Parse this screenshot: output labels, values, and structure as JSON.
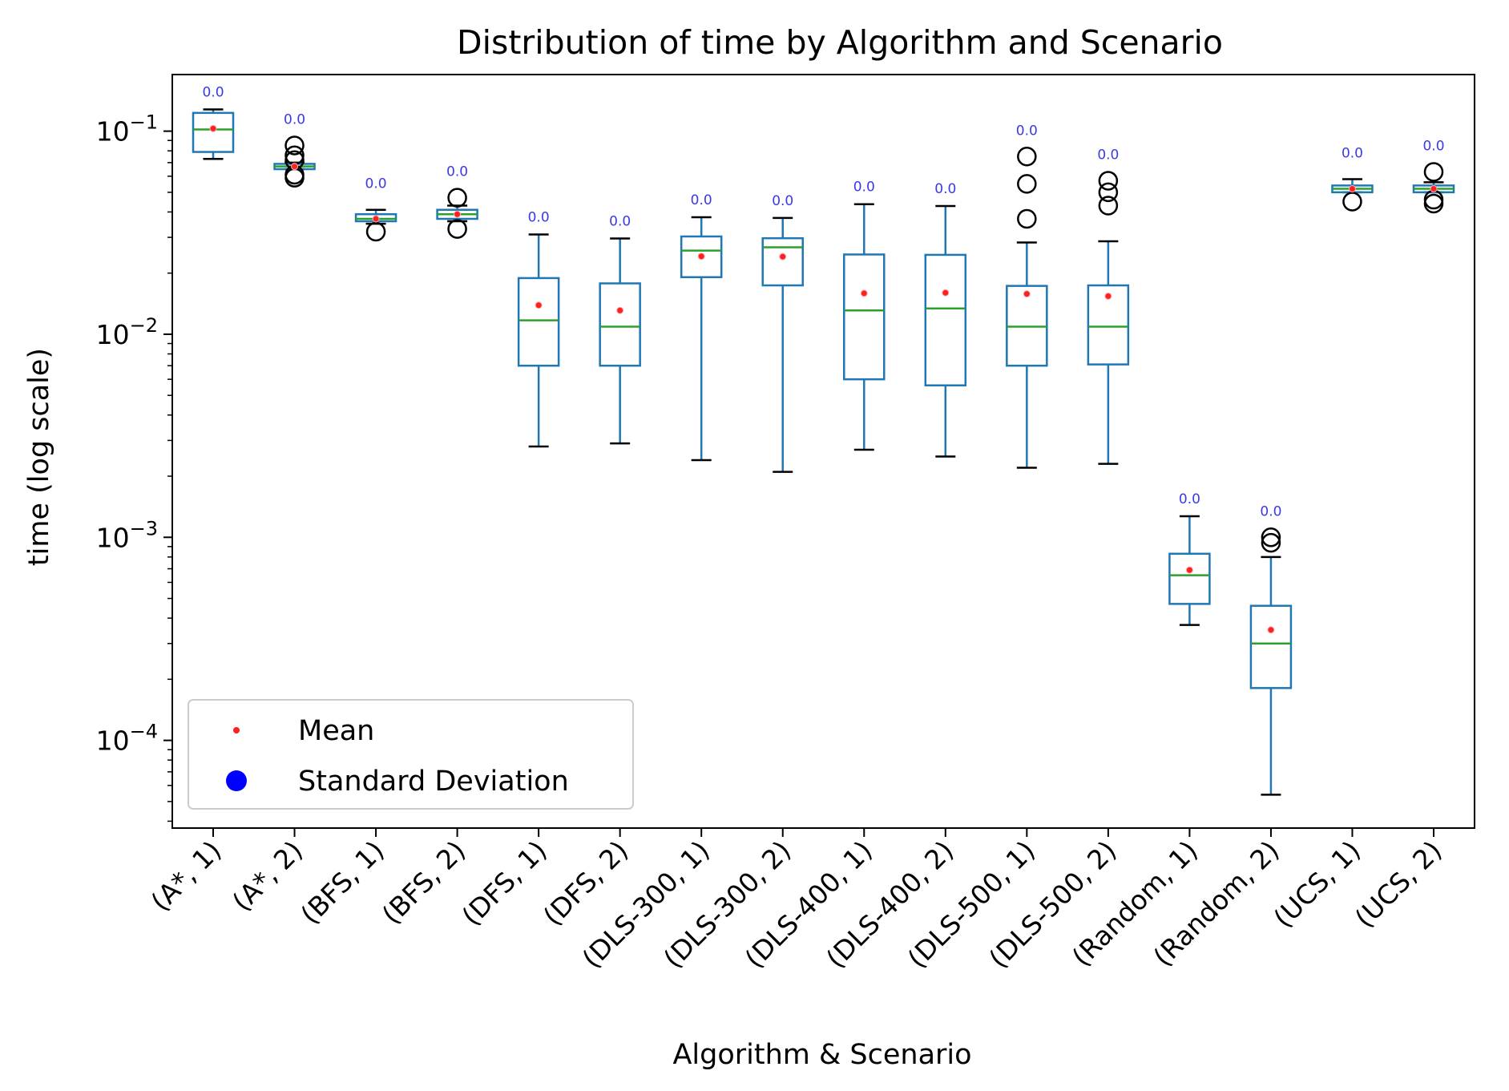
{
  "chart_data": {
    "type": "box",
    "title": "Distribution of time by Algorithm and Scenario",
    "xlabel": "Algorithm & Scenario",
    "ylabel": "time (log scale)",
    "yscale": "log",
    "ylim": [
      3.7e-05,
      0.19
    ],
    "yticks": [
      {
        "value": 0.1,
        "base": "10",
        "exp": "−1"
      },
      {
        "value": 0.01,
        "base": "10",
        "exp": "−2"
      },
      {
        "value": 0.001,
        "base": "10",
        "exp": "−3"
      },
      {
        "value": 0.0001,
        "base": "10",
        "exp": "−4"
      }
    ],
    "grid": false,
    "legend": {
      "placement": "lower-left",
      "entries": [
        {
          "label": "Mean",
          "color": "#ff2020"
        },
        {
          "label": "Standard Deviation",
          "color": "#0000ff"
        }
      ]
    },
    "colors": {
      "box": "#1f77b4",
      "median": "#2ca02c",
      "mean": "#ff2020",
      "whisker_cap": "#000000",
      "std_label": "#3a3ae8"
    },
    "categories": [
      {
        "label": "(A*, 1)",
        "whislo": 0.073,
        "q1": 0.079,
        "median": 0.102,
        "q3": 0.123,
        "whishi": 0.128,
        "mean": 0.103,
        "fliers": [],
        "std": "0.0"
      },
      {
        "label": "(A*, 2)",
        "whislo": 0.065,
        "q1": 0.065,
        "median": 0.067,
        "q3": 0.069,
        "whishi": 0.07,
        "mean": 0.067,
        "fliers": [
          0.085,
          0.076,
          0.072,
          0.061,
          0.059
        ],
        "std": "0.0"
      },
      {
        "label": "(BFS, 1)",
        "whislo": 0.035,
        "q1": 0.036,
        "median": 0.037,
        "q3": 0.039,
        "whishi": 0.041,
        "mean": 0.037,
        "fliers": [
          0.032
        ],
        "std": "0.0"
      },
      {
        "label": "(BFS, 2)",
        "whislo": 0.036,
        "q1": 0.037,
        "median": 0.039,
        "q3": 0.041,
        "whishi": 0.043,
        "mean": 0.039,
        "fliers": [
          0.047,
          0.033
        ],
        "std": "0.0"
      },
      {
        "label": "(DFS, 1)",
        "whislo": 0.0028,
        "q1": 0.007,
        "median": 0.0117,
        "q3": 0.0189,
        "whishi": 0.031,
        "mean": 0.0139,
        "fliers": [],
        "std": "0.0"
      },
      {
        "label": "(DFS, 2)",
        "whislo": 0.0029,
        "q1": 0.007,
        "median": 0.0109,
        "q3": 0.0178,
        "whishi": 0.0296,
        "mean": 0.0131,
        "fliers": [],
        "std": "0.0"
      },
      {
        "label": "(DLS-300, 1)",
        "whislo": 0.0024,
        "q1": 0.0191,
        "median": 0.0258,
        "q3": 0.0303,
        "whishi": 0.0377,
        "mean": 0.0242,
        "fliers": [],
        "std": "0.0"
      },
      {
        "label": "(DLS-300, 2)",
        "whislo": 0.0021,
        "q1": 0.0174,
        "median": 0.0268,
        "q3": 0.0297,
        "whishi": 0.0374,
        "mean": 0.0241,
        "fliers": [],
        "std": "0.0"
      },
      {
        "label": "(DLS-400, 1)",
        "whislo": 0.0027,
        "q1": 0.006,
        "median": 0.0131,
        "q3": 0.0247,
        "whishi": 0.0437,
        "mean": 0.0159,
        "fliers": [],
        "std": "0.0"
      },
      {
        "label": "(DLS-400, 2)",
        "whislo": 0.0025,
        "q1": 0.0056,
        "median": 0.0134,
        "q3": 0.0246,
        "whishi": 0.0428,
        "mean": 0.016,
        "fliers": [],
        "std": "0.0"
      },
      {
        "label": "(DLS-500, 1)",
        "whislo": 0.0022,
        "q1": 0.007,
        "median": 0.0109,
        "q3": 0.0173,
        "whishi": 0.0283,
        "mean": 0.0158,
        "fliers": [
          0.075,
          0.055,
          0.037
        ],
        "std": "0.0"
      },
      {
        "label": "(DLS-500, 2)",
        "whislo": 0.0023,
        "q1": 0.0071,
        "median": 0.0109,
        "q3": 0.0174,
        "whishi": 0.0287,
        "mean": 0.0154,
        "fliers": [
          0.057,
          0.05,
          0.043
        ],
        "std": "0.0"
      },
      {
        "label": "(Random, 1)",
        "whislo": 0.00037,
        "q1": 0.00047,
        "median": 0.00065,
        "q3": 0.00083,
        "whishi": 0.00127,
        "mean": 0.00069,
        "fliers": [],
        "std": "0.0"
      },
      {
        "label": "(Random, 2)",
        "whislo": 5.4e-05,
        "q1": 0.000181,
        "median": 0.0003,
        "q3": 0.00046,
        "whishi": 0.0008,
        "mean": 0.00035,
        "fliers": [
          0.001,
          0.00094
        ],
        "std": "0.0"
      },
      {
        "label": "(UCS, 1)",
        "whislo": 0.05,
        "q1": 0.05,
        "median": 0.052,
        "q3": 0.054,
        "whishi": 0.058,
        "mean": 0.052,
        "fliers": [
          0.045
        ],
        "std": "0.0"
      },
      {
        "label": "(UCS, 2)",
        "whislo": 0.05,
        "q1": 0.05,
        "median": 0.052,
        "q3": 0.054,
        "whishi": 0.056,
        "mean": 0.052,
        "fliers": [
          0.063,
          0.046,
          0.044
        ],
        "std": "0.0"
      }
    ]
  }
}
